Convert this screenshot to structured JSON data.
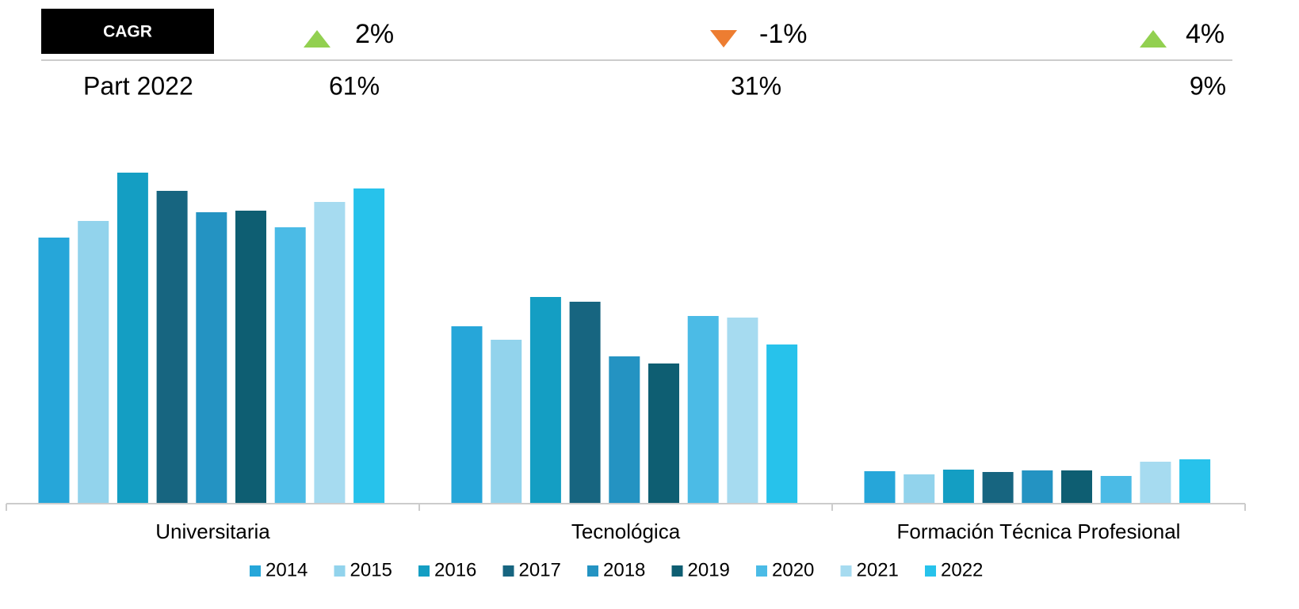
{
  "header": {
    "cagr_label": "CAGR",
    "share_label": "Part 2022",
    "cagr": [
      {
        "text": "2%",
        "trend": "up",
        "color": "#92d050"
      },
      {
        "text": "-1%",
        "trend": "down",
        "color": "#ed7d31"
      },
      {
        "text": "4%",
        "trend": "up",
        "color": "#92d050"
      }
    ],
    "shares": [
      "61%",
      "31%",
      "9%"
    ]
  },
  "chart_data": {
    "type": "bar",
    "categories": [
      "Universitaria",
      "Tecnológica",
      "Formación Técnica Profesional"
    ],
    "ylim": [
      0,
      420
    ],
    "series": [
      {
        "name": "2014",
        "color": "#26a6d9",
        "values": [
          336,
          224,
          41
        ]
      },
      {
        "name": "2015",
        "color": "#92d3ec",
        "values": [
          357,
          207,
          37
        ]
      },
      {
        "name": "2016",
        "color": "#149ec3",
        "values": [
          418,
          261,
          43
        ]
      },
      {
        "name": "2017",
        "color": "#176580",
        "values": [
          395,
          255,
          40
        ]
      },
      {
        "name": "2018",
        "color": "#2493c2",
        "values": [
          368,
          186,
          42
        ]
      },
      {
        "name": "2019",
        "color": "#0e5e72",
        "values": [
          370,
          177,
          42
        ]
      },
      {
        "name": "2020",
        "color": "#4bbbe6",
        "values": [
          349,
          237,
          35
        ]
      },
      {
        "name": "2021",
        "color": "#a6dbf0",
        "values": [
          381,
          235,
          53
        ]
      },
      {
        "name": "2022",
        "color": "#27c2eb",
        "values": [
          398,
          201,
          56
        ]
      }
    ]
  }
}
